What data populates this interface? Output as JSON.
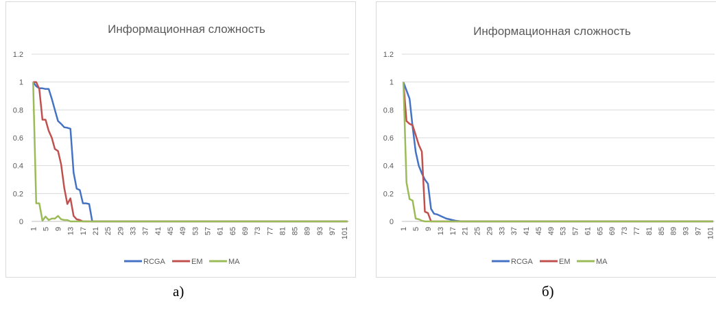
{
  "panel_labels": [
    "а)",
    "б)"
  ],
  "chart_data": [
    {
      "type": "line",
      "title": "Информационная сложность",
      "xlabel": "",
      "ylabel": "",
      "ylim": [
        0,
        1.2
      ],
      "yticks": [
        "0",
        "0.2",
        "0.4",
        "0.6",
        "0.8",
        "1",
        "1.2"
      ],
      "x_range": [
        1,
        102
      ],
      "xticks": [
        "1",
        "5",
        "9",
        "13",
        "17",
        "21",
        "25",
        "29",
        "33",
        "37",
        "41",
        "45",
        "49",
        "53",
        "57",
        "61",
        "65",
        "69",
        "73",
        "77",
        "81",
        "85",
        "89",
        "93",
        "97",
        "101"
      ],
      "grid": true,
      "legend": "bottom",
      "series": [
        {
          "name": "RCGA",
          "color": "#4472c4",
          "points": [
            [
              1,
              1.0
            ],
            [
              2,
              0.97
            ],
            [
              3,
              0.955
            ],
            [
              4,
              0.955
            ],
            [
              5,
              0.95
            ],
            [
              6,
              0.95
            ],
            [
              7,
              0.88
            ],
            [
              8,
              0.8
            ],
            [
              9,
              0.72
            ],
            [
              10,
              0.7
            ],
            [
              11,
              0.675
            ],
            [
              12,
              0.672
            ],
            [
              13,
              0.665
            ],
            [
              14,
              0.35
            ],
            [
              15,
              0.235
            ],
            [
              16,
              0.225
            ],
            [
              17,
              0.13
            ],
            [
              18,
              0.13
            ],
            [
              19,
              0.125
            ],
            [
              20,
              0.0
            ],
            [
              102,
              0.0
            ]
          ]
        },
        {
          "name": "EM",
          "color": "#c0504d",
          "points": [
            [
              1,
              1.0
            ],
            [
              2,
              1.0
            ],
            [
              3,
              0.95
            ],
            [
              4,
              0.73
            ],
            [
              5,
              0.73
            ],
            [
              6,
              0.65
            ],
            [
              7,
              0.6
            ],
            [
              8,
              0.52
            ],
            [
              9,
              0.505
            ],
            [
              10,
              0.41
            ],
            [
              11,
              0.24
            ],
            [
              12,
              0.125
            ],
            [
              13,
              0.165
            ],
            [
              14,
              0.04
            ],
            [
              15,
              0.015
            ],
            [
              16,
              0.01
            ],
            [
              17,
              0.0
            ],
            [
              102,
              0.0
            ]
          ]
        },
        {
          "name": "MA",
          "color": "#9bbb59",
          "points": [
            [
              1,
              1.0
            ],
            [
              2,
              0.13
            ],
            [
              3,
              0.13
            ],
            [
              4,
              0.005
            ],
            [
              5,
              0.035
            ],
            [
              6,
              0.01
            ],
            [
              7,
              0.02
            ],
            [
              8,
              0.02
            ],
            [
              9,
              0.04
            ],
            [
              10,
              0.015
            ],
            [
              11,
              0.01
            ],
            [
              12,
              0.01
            ],
            [
              13,
              0.0
            ],
            [
              102,
              0.0
            ]
          ]
        }
      ]
    },
    {
      "type": "line",
      "title": "Информационная сложность",
      "xlabel": "",
      "ylabel": "",
      "ylim": [
        0,
        1.2
      ],
      "yticks": [
        "0",
        "0.2",
        "0.4",
        "0.6",
        "0.8",
        "1",
        "1.2"
      ],
      "x_range": [
        1,
        102
      ],
      "xticks": [
        "1",
        "5",
        "9",
        "13",
        "17",
        "21",
        "25",
        "29",
        "33",
        "37",
        "41",
        "45",
        "49",
        "53",
        "57",
        "61",
        "65",
        "69",
        "73",
        "77",
        "81",
        "85",
        "89",
        "93",
        "97",
        "101"
      ],
      "grid": true,
      "legend": "bottom",
      "series": [
        {
          "name": "RCGA",
          "color": "#4472c4",
          "points": [
            [
              1,
              1.0
            ],
            [
              2,
              0.94
            ],
            [
              3,
              0.88
            ],
            [
              4,
              0.68
            ],
            [
              5,
              0.5
            ],
            [
              6,
              0.4
            ],
            [
              7,
              0.345
            ],
            [
              8,
              0.3
            ],
            [
              9,
              0.27
            ],
            [
              10,
              0.09
            ],
            [
              11,
              0.055
            ],
            [
              12,
              0.05
            ],
            [
              13,
              0.04
            ],
            [
              14,
              0.03
            ],
            [
              15,
              0.02
            ],
            [
              16,
              0.015
            ],
            [
              17,
              0.01
            ],
            [
              18,
              0.005
            ],
            [
              20,
              0.0
            ],
            [
              102,
              0.0
            ]
          ]
        },
        {
          "name": "EM",
          "color": "#c0504d",
          "points": [
            [
              1,
              1.0
            ],
            [
              2,
              0.72
            ],
            [
              3,
              0.7
            ],
            [
              4,
              0.69
            ],
            [
              5,
              0.62
            ],
            [
              6,
              0.55
            ],
            [
              7,
              0.5
            ],
            [
              8,
              0.07
            ],
            [
              9,
              0.06
            ],
            [
              10,
              0.0
            ],
            [
              102,
              0.0
            ]
          ]
        },
        {
          "name": "MA",
          "color": "#9bbb59",
          "points": [
            [
              1,
              1.0
            ],
            [
              2,
              0.28
            ],
            [
              3,
              0.16
            ],
            [
              4,
              0.15
            ],
            [
              5,
              0.02
            ],
            [
              6,
              0.015
            ],
            [
              7,
              0.005
            ],
            [
              8,
              0.0
            ],
            [
              102,
              0.0
            ]
          ]
        }
      ]
    }
  ]
}
